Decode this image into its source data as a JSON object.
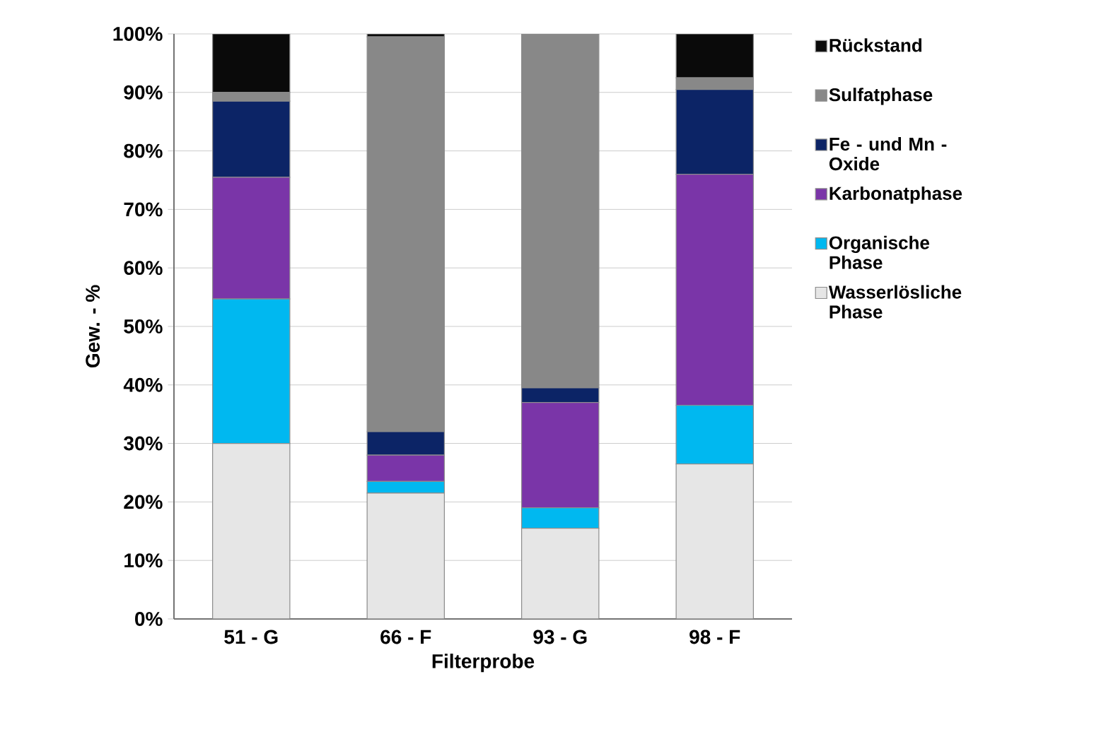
{
  "chart_data": {
    "type": "bar",
    "stacked": true,
    "xlabel": "Filterprobe",
    "ylabel": "Gew. - %",
    "categories": [
      "51 - G",
      "66 - F",
      "93 - G",
      "98 - F"
    ],
    "series": [
      {
        "name": "Wasserlösliche Phase",
        "color": "#e6e6e6",
        "values": [
          30,
          21.5,
          15.5,
          26.5
        ]
      },
      {
        "name": "Organische Phase",
        "color": "#00b8f0",
        "values": [
          24.7,
          2,
          3.5,
          10
        ]
      },
      {
        "name": "Karbonatphase",
        "color": "#7a35a8",
        "values": [
          20.8,
          4.5,
          18,
          39.5
        ]
      },
      {
        "name": "Fe - und Mn - Oxide",
        "color": "#0c2466",
        "values": [
          13,
          4,
          2.5,
          14.5
        ]
      },
      {
        "name": "Sulfatphase",
        "color": "#888888",
        "values": [
          1.5,
          67.5,
          60.5,
          2
        ]
      },
      {
        "name": "Rückstand",
        "color": "#0a0a0a",
        "values": [
          10,
          0.5,
          0,
          7.5
        ]
      }
    ],
    "ylim": [
      0,
      100
    ],
    "yticks": [
      {
        "value": 0,
        "label": "0%"
      },
      {
        "value": 10,
        "label": "10%"
      },
      {
        "value": 20,
        "label": "20%"
      },
      {
        "value": 30,
        "label": "30%"
      },
      {
        "value": 40,
        "label": "40%"
      },
      {
        "value": 50,
        "label": "50%"
      },
      {
        "value": 60,
        "label": "60%"
      },
      {
        "value": 70,
        "label": "70%"
      },
      {
        "value": 80,
        "label": "80%"
      },
      {
        "value": 90,
        "label": "90%"
      },
      {
        "value": 100,
        "label": "100%"
      }
    ],
    "grid": "y",
    "legend": "right"
  }
}
